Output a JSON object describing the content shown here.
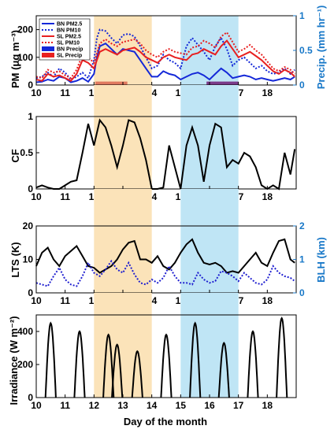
{
  "panels": {
    "pm": {
      "ylabel": "PM (μg m⁻³)",
      "y2label": "Precip. (mm hr⁻¹)"
    },
    "cf": {
      "ylabel": "CF"
    },
    "lts": {
      "ylabel": "LTS (K)",
      "y2label": "BLH (km)"
    },
    "irr": {
      "ylabel": "Irradiance (W m⁻²)",
      "xlabel": "Day of the month"
    }
  },
  "colors": {
    "bn": "#1428d8",
    "sl": "#e82020",
    "bnPrecip": "#1428d8",
    "slPrecip": "#e82020",
    "black": "#000000",
    "blue": "#1878c8",
    "bluedot": "#2020d0",
    "shade_orange": "#fbe3b9",
    "shade_blue": "#bfe5f5",
    "bar_salmon": "#e07a5f",
    "bar_purple": "#7a3a8a"
  },
  "chart_data": [
    {
      "type": "line",
      "title": "",
      "xlabel": "",
      "ylabel": "PM (μg m⁻³)",
      "y2label": "Precip. (mm hr⁻¹)",
      "xlim": [
        10,
        19
      ],
      "ylim": [
        0,
        250
      ],
      "y2lim": [
        0,
        1
      ],
      "xticks": [
        10,
        11,
        12,
        13,
        14,
        15,
        16,
        17,
        18
      ],
      "yticks": [
        0,
        100,
        200
      ],
      "y2ticks": [
        0,
        0.5,
        1
      ],
      "shaded_ranges": [
        [
          12,
          14
        ],
        [
          15,
          17
        ]
      ],
      "legend": [
        "BN PM2.5",
        "BN PM10",
        "SL PM2.5",
        "SL PM10",
        "BN Precip",
        "SL Precip"
      ],
      "legend_location": "top-left",
      "series": [
        {
          "name": "BN PM2.5",
          "style": "solid",
          "color": "bn",
          "x": [
            10,
            10.2,
            10.4,
            10.6,
            10.8,
            11,
            11.2,
            11.4,
            11.6,
            11.8,
            12,
            12.1,
            12.2,
            12.4,
            12.6,
            12.8,
            13,
            13.2,
            13.4,
            13.6,
            13.8,
            14,
            14.2,
            14.4,
            14.6,
            14.8,
            15,
            15.2,
            15.4,
            15.6,
            15.8,
            16,
            16.2,
            16.4,
            16.6,
            16.8,
            17,
            17.2,
            17.4,
            17.6,
            17.8,
            18,
            18.2,
            18.4,
            18.6,
            18.8,
            18.95
          ],
          "y": [
            10,
            12,
            20,
            15,
            30,
            25,
            10,
            15,
            25,
            12,
            40,
            100,
            140,
            150,
            130,
            110,
            130,
            125,
            120,
            90,
            60,
            30,
            30,
            50,
            40,
            35,
            20,
            30,
            40,
            45,
            35,
            20,
            40,
            60,
            45,
            25,
            30,
            35,
            30,
            20,
            25,
            20,
            15,
            20,
            25,
            20,
            30
          ]
        },
        {
          "name": "BN PM10",
          "style": "dotted",
          "color": "bn",
          "x": [
            10,
            10.2,
            10.4,
            10.6,
            10.8,
            11,
            11.2,
            11.4,
            11.6,
            11.8,
            12,
            12.1,
            12.2,
            12.4,
            12.6,
            12.8,
            13,
            13.2,
            13.4,
            13.6,
            13.8,
            14,
            14.2,
            14.4,
            14.6,
            14.8,
            15,
            15.2,
            15.4,
            15.6,
            15.8,
            16,
            16.2,
            16.4,
            16.6,
            16.8,
            17,
            17.2,
            17.4,
            17.6,
            17.8,
            18,
            18.2,
            18.4,
            18.6,
            18.8,
            18.95
          ],
          "y": [
            25,
            30,
            45,
            30,
            60,
            45,
            20,
            30,
            45,
            25,
            90,
            170,
            200,
            195,
            170,
            150,
            180,
            185,
            175,
            140,
            100,
            60,
            70,
            110,
            90,
            80,
            60,
            140,
            170,
            145,
            120,
            90,
            140,
            170,
            130,
            70,
            90,
            100,
            80,
            60,
            70,
            50,
            40,
            45,
            60,
            40,
            55
          ]
        },
        {
          "name": "SL PM2.5",
          "style": "solid",
          "color": "sl",
          "x": [
            10,
            10.2,
            10.4,
            10.6,
            10.8,
            11,
            11.2,
            11.4,
            11.6,
            11.8,
            12,
            12.2,
            12.4,
            12.6,
            12.8,
            13,
            13.2,
            13.4,
            13.6,
            13.8,
            14,
            14.2,
            14.4,
            14.6,
            14.8,
            15,
            15.2,
            15.4,
            15.6,
            15.8,
            16,
            16.2,
            16.4,
            16.6,
            16.8,
            17,
            17.2,
            17.4,
            17.6,
            17.8,
            18,
            18.2,
            18.4,
            18.6,
            18.8,
            18.95
          ],
          "y": [
            20,
            15,
            40,
            30,
            35,
            25,
            15,
            40,
            90,
            80,
            60,
            120,
            130,
            120,
            110,
            125,
            130,
            135,
            120,
            100,
            90,
            80,
            100,
            110,
            100,
            95,
            90,
            110,
            115,
            130,
            120,
            110,
            140,
            160,
            130,
            100,
            110,
            120,
            105,
            90,
            70,
            50,
            40,
            55,
            45,
            30
          ]
        },
        {
          "name": "SL PM10",
          "style": "dotted",
          "color": "sl",
          "x": [
            10,
            10.2,
            10.4,
            10.6,
            10.8,
            11,
            11.2,
            11.4,
            11.6,
            11.8,
            12,
            12.2,
            12.4,
            12.6,
            12.8,
            13,
            13.2,
            13.4,
            13.6,
            13.8,
            14,
            14.2,
            14.4,
            14.6,
            14.8,
            15,
            15.2,
            15.4,
            15.6,
            15.8,
            16,
            16.2,
            16.4,
            16.6,
            16.8,
            17,
            17.2,
            17.4,
            17.6,
            17.8,
            18,
            18.2,
            18.4,
            18.6,
            18.8,
            18.95
          ],
          "y": [
            30,
            25,
            55,
            45,
            50,
            35,
            25,
            55,
            110,
            100,
            80,
            150,
            165,
            150,
            140,
            155,
            160,
            165,
            150,
            125,
            110,
            100,
            120,
            130,
            120,
            115,
            110,
            135,
            140,
            160,
            150,
            135,
            175,
            190,
            155,
            120,
            130,
            145,
            125,
            110,
            85,
            60,
            50,
            65,
            55,
            40
          ]
        },
        {
          "name": "BN Precip",
          "type": "bar",
          "axis": "y2",
          "color": "bnPrecip",
          "x": [
            15.95,
            16.05,
            16.15,
            16.25,
            16.35,
            16.45,
            16.55,
            16.65,
            16.75,
            16.85,
            16.95
          ],
          "y": [
            0.05,
            0.05,
            0.05,
            0.05,
            0.05,
            0.05,
            0.05,
            0.05,
            0.05,
            0.05,
            0.05
          ]
        },
        {
          "name": "SL Precip",
          "type": "bar",
          "axis": "y2",
          "color": "slPrecip",
          "x": [
            12.1,
            12.2,
            12.3,
            12.4,
            12.5,
            12.6,
            12.7,
            12.8,
            12.9,
            13.0,
            13.1
          ],
          "y": [
            0.05,
            0.05,
            0.05,
            0.05,
            0.05,
            0.05,
            0.05,
            0.05,
            0.05,
            0.05,
            0.05
          ]
        }
      ]
    },
    {
      "type": "line",
      "title": "",
      "xlabel": "",
      "ylabel": "CF",
      "xlim": [
        10,
        19
      ],
      "ylim": [
        0,
        1
      ],
      "xticks": [
        10,
        11,
        12,
        13,
        14,
        15,
        16,
        17,
        18
      ],
      "yticks": [
        0,
        0.5,
        1
      ],
      "shaded_ranges": [
        [
          12,
          14
        ],
        [
          15,
          17
        ]
      ],
      "series": [
        {
          "name": "",
          "style": "solid",
          "color": "black",
          "x": [
            10,
            10.2,
            10.4,
            10.6,
            10.8,
            11,
            11.2,
            11.4,
            11.6,
            11.8,
            12,
            12.2,
            12.4,
            12.6,
            12.8,
            13,
            13.2,
            13.4,
            13.6,
            13.8,
            14,
            14.2,
            14.4,
            14.6,
            14.8,
            15,
            15.2,
            15.4,
            15.6,
            15.8,
            16,
            16.2,
            16.4,
            16.6,
            16.8,
            17,
            17.2,
            17.4,
            17.6,
            17.8,
            18,
            18.2,
            18.4,
            18.6,
            18.8,
            18.95
          ],
          "y": [
            0.02,
            0.05,
            0.02,
            0.0,
            0.0,
            0.05,
            0.1,
            0.12,
            0.5,
            0.9,
            0.6,
            0.95,
            0.85,
            0.6,
            0.3,
            0.6,
            0.95,
            0.92,
            0.7,
            0.4,
            0.0,
            0.0,
            0.02,
            0.6,
            0.3,
            0.0,
            0.6,
            0.85,
            0.6,
            0.1,
            0.6,
            0.9,
            0.85,
            0.3,
            0.4,
            0.35,
            0.5,
            0.45,
            0.3,
            0.05,
            0.0,
            0.05,
            0.0,
            0.5,
            0.2,
            0.55
          ]
        }
      ]
    },
    {
      "type": "line",
      "title": "",
      "xlabel": "",
      "ylabel": "LTS (K)",
      "y2label": "BLH (km)",
      "xlim": [
        10,
        19
      ],
      "ylim": [
        0,
        20
      ],
      "y2lim": [
        0,
        2
      ],
      "xticks": [
        10,
        11,
        12,
        13,
        14,
        15,
        16,
        17,
        18
      ],
      "yticks": [
        0,
        10,
        20
      ],
      "y2ticks": [
        0,
        1,
        2
      ],
      "shaded_ranges": [
        [
          12,
          14
        ],
        [
          15,
          17
        ]
      ],
      "series": [
        {
          "name": "",
          "style": "solid",
          "color": "black",
          "axis": "y",
          "x": [
            10,
            10.2,
            10.4,
            10.6,
            10.8,
            11,
            11.2,
            11.4,
            11.6,
            11.8,
            12,
            12.2,
            12.4,
            12.6,
            12.8,
            13,
            13.2,
            13.4,
            13.6,
            13.8,
            14,
            14.2,
            14.4,
            14.6,
            14.8,
            15,
            15.2,
            15.4,
            15.6,
            15.8,
            16,
            16.2,
            16.4,
            16.6,
            16.8,
            17,
            17.2,
            17.4,
            17.6,
            17.8,
            18,
            18.2,
            18.4,
            18.6,
            18.8,
            18.95
          ],
          "y": [
            8,
            12,
            13.5,
            10,
            8,
            11,
            12.5,
            14,
            11,
            8,
            7.5,
            6,
            7,
            8,
            10,
            13,
            15,
            15.5,
            10,
            10,
            9,
            11,
            8,
            7,
            9,
            12,
            14.5,
            16,
            12,
            9,
            8.5,
            9,
            8,
            6,
            6.5,
            6,
            8,
            10,
            12,
            9,
            8,
            12,
            15.5,
            16,
            10,
            9
          ]
        },
        {
          "name": "",
          "style": "dotted",
          "color": "bluedot",
          "axis": "y2",
          "x": [
            10,
            10.2,
            10.4,
            10.6,
            10.8,
            11,
            11.2,
            11.4,
            11.6,
            11.8,
            12,
            12.2,
            12.4,
            12.6,
            12.8,
            13,
            13.2,
            13.4,
            13.6,
            13.8,
            14,
            14.2,
            14.4,
            14.6,
            14.8,
            15,
            15.2,
            15.4,
            15.6,
            15.8,
            16,
            16.2,
            16.4,
            16.6,
            16.8,
            17,
            17.2,
            17.4,
            17.6,
            17.8,
            18,
            18.2,
            18.4,
            18.6,
            18.8,
            18.95
          ],
          "y": [
            0.3,
            0.25,
            0.2,
            0.5,
            0.75,
            0.4,
            0.25,
            0.2,
            0.5,
            0.9,
            0.6,
            0.5,
            0.7,
            0.95,
            0.7,
            0.6,
            0.9,
            0.55,
            0.3,
            0.25,
            0.4,
            0.3,
            0.45,
            0.8,
            0.5,
            0.3,
            0.3,
            0.25,
            0.6,
            0.4,
            0.3,
            0.35,
            0.65,
            0.6,
            0.5,
            0.35,
            0.6,
            0.45,
            0.3,
            0.25,
            0.4,
            0.8,
            0.6,
            0.5,
            0.45,
            0.35
          ]
        }
      ]
    },
    {
      "type": "line",
      "title": "",
      "xlabel": "Day of the month",
      "ylabel": "Irradiance (W m⁻²)",
      "xlim": [
        10,
        19
      ],
      "ylim": [
        0,
        500
      ],
      "xticks": [
        10,
        11,
        12,
        13,
        14,
        15,
        16,
        17,
        18
      ],
      "yticks": [
        0,
        200,
        400
      ],
      "shaded_ranges": [
        [
          12,
          14
        ],
        [
          15,
          17
        ]
      ],
      "series": [
        {
          "name": "",
          "style": "solid",
          "color": "black",
          "peaks": [
            {
              "center": 10.5,
              "peak": 450
            },
            {
              "center": 11.5,
              "peak": 400
            },
            {
              "center": 12.5,
              "peak": 380
            },
            {
              "center": 12.8,
              "peak": 320
            },
            {
              "center": 13.5,
              "peak": 280
            },
            {
              "center": 14.5,
              "peak": 380
            },
            {
              "center": 15.5,
              "peak": 450
            },
            {
              "center": 16.5,
              "peak": 330
            },
            {
              "center": 17.5,
              "peak": 400
            },
            {
              "center": 18.5,
              "peak": 480
            }
          ]
        }
      ]
    }
  ]
}
